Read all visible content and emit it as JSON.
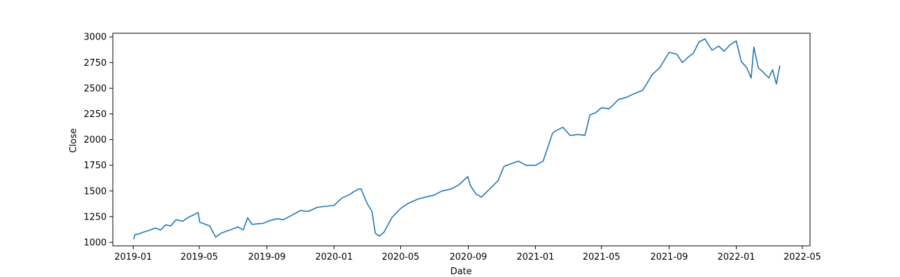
{
  "chart_data": {
    "type": "line",
    "title": "",
    "xlabel": "Date",
    "ylabel": "Close",
    "xlim": [
      "2018-11-25",
      "2022-05-15"
    ],
    "ylim": [
      966,
      3035
    ],
    "grid": false,
    "line_color": "#1f77b4",
    "x_ticks": [
      {
        "date": "2019-01-01",
        "label": "2019-01"
      },
      {
        "date": "2019-05-01",
        "label": "2019-05"
      },
      {
        "date": "2019-09-01",
        "label": "2019-09"
      },
      {
        "date": "2020-01-01",
        "label": "2020-01"
      },
      {
        "date": "2020-05-01",
        "label": "2020-05"
      },
      {
        "date": "2020-09-01",
        "label": "2020-09"
      },
      {
        "date": "2021-01-01",
        "label": "2021-01"
      },
      {
        "date": "2021-05-01",
        "label": "2021-05"
      },
      {
        "date": "2021-09-01",
        "label": "2021-09"
      },
      {
        "date": "2022-01-01",
        "label": "2022-01"
      },
      {
        "date": "2022-05-01",
        "label": "2022-05"
      }
    ],
    "y_ticks": [
      {
        "value": 1000,
        "label": "1000"
      },
      {
        "value": 1250,
        "label": "1250"
      },
      {
        "value": 1500,
        "label": "1500"
      },
      {
        "value": 1750,
        "label": "1750"
      },
      {
        "value": 2000,
        "label": "2000"
      },
      {
        "value": 2250,
        "label": "2250"
      },
      {
        "value": 2500,
        "label": "2500"
      },
      {
        "value": 2750,
        "label": "2750"
      },
      {
        "value": 3000,
        "label": "3000"
      }
    ],
    "series": [
      {
        "x": [
          "2019-01-02",
          "2019-01-04",
          "2019-01-10",
          "2019-01-20",
          "2019-02-01",
          "2019-02-10",
          "2019-02-20",
          "2019-03-01",
          "2019-03-10",
          "2019-03-20",
          "2019-04-01",
          "2019-04-10",
          "2019-04-20",
          "2019-04-29",
          "2019-05-02",
          "2019-05-10",
          "2019-05-20",
          "2019-05-31",
          "2019-06-10",
          "2019-06-20",
          "2019-07-01",
          "2019-07-10",
          "2019-07-20",
          "2019-07-28",
          "2019-08-05",
          "2019-08-15",
          "2019-08-25",
          "2019-09-05",
          "2019-09-20",
          "2019-10-01",
          "2019-10-15",
          "2019-11-01",
          "2019-11-15",
          "2019-12-01",
          "2019-12-15",
          "2020-01-01",
          "2020-01-15",
          "2020-01-31",
          "2020-02-05",
          "2020-02-15",
          "2020-02-19",
          "2020-03-01",
          "2020-03-10",
          "2020-03-16",
          "2020-03-23",
          "2020-04-01",
          "2020-04-15",
          "2020-05-01",
          "2020-05-15",
          "2020-06-01",
          "2020-06-15",
          "2020-07-01",
          "2020-07-15",
          "2020-08-01",
          "2020-08-15",
          "2020-08-31",
          "2020-09-05",
          "2020-09-15",
          "2020-09-25",
          "2020-10-10",
          "2020-10-25",
          "2020-11-05",
          "2020-11-15",
          "2020-12-01",
          "2020-12-15",
          "2021-01-01",
          "2021-01-15",
          "2021-02-01",
          "2021-02-05",
          "2021-02-20",
          "2021-03-05",
          "2021-03-20",
          "2021-04-01",
          "2021-04-10",
          "2021-04-20",
          "2021-05-01",
          "2021-05-15",
          "2021-06-01",
          "2021-06-15",
          "2021-07-01",
          "2021-07-15",
          "2021-08-01",
          "2021-08-15",
          "2021-09-01",
          "2021-09-15",
          "2021-09-25",
          "2021-10-05",
          "2021-10-15",
          "2021-10-25",
          "2021-11-05",
          "2021-11-18",
          "2021-11-30",
          "2021-12-10",
          "2021-12-20",
          "2022-01-01",
          "2022-01-10",
          "2022-01-20",
          "2022-01-28",
          "2022-02-02",
          "2022-02-10",
          "2022-02-20",
          "2022-03-01",
          "2022-03-08",
          "2022-03-15",
          "2022-03-21"
        ],
        "y": [
          1030,
          1075,
          1080,
          1100,
          1120,
          1140,
          1120,
          1170,
          1160,
          1220,
          1205,
          1240,
          1265,
          1290,
          1195,
          1180,
          1160,
          1050,
          1090,
          1110,
          1130,
          1150,
          1120,
          1240,
          1175,
          1180,
          1185,
          1210,
          1230,
          1220,
          1260,
          1310,
          1300,
          1340,
          1350,
          1360,
          1430,
          1470,
          1490,
          1520,
          1520,
          1380,
          1300,
          1090,
          1060,
          1100,
          1240,
          1330,
          1380,
          1420,
          1440,
          1460,
          1500,
          1520,
          1560,
          1640,
          1550,
          1470,
          1440,
          1520,
          1600,
          1740,
          1760,
          1790,
          1750,
          1750,
          1790,
          2060,
          2080,
          2120,
          2040,
          2050,
          2040,
          2240,
          2260,
          2310,
          2300,
          2390,
          2410,
          2450,
          2480,
          2630,
          2700,
          2850,
          2830,
          2750,
          2800,
          2840,
          2950,
          2980,
          2870,
          2910,
          2860,
          2920,
          2960,
          2760,
          2700,
          2600,
          2900,
          2700,
          2650,
          2600,
          2680,
          2540,
          2720
        ]
      }
    ]
  }
}
